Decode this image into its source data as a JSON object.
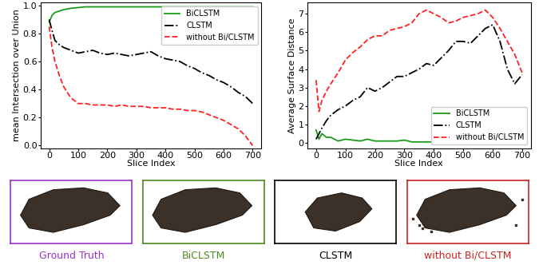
{
  "chart_data": [
    {
      "type": "line",
      "x_label": "Slice Index",
      "y_label": "mean Intersection over Union",
      "x": [
        0,
        10,
        20,
        35,
        50,
        75,
        100,
        125,
        150,
        175,
        200,
        225,
        250,
        275,
        300,
        325,
        350,
        375,
        400,
        425,
        450,
        475,
        500,
        525,
        550,
        575,
        600,
        625,
        650,
        675,
        700
      ],
      "xlim": [
        -30,
        730
      ],
      "xticks": [
        0,
        100,
        200,
        300,
        400,
        500,
        600,
        700
      ],
      "ylim": [
        -0.02,
        1.02
      ],
      "yticks": [
        0.0,
        0.2,
        0.4,
        0.6,
        0.8,
        1.0
      ],
      "legend": "upper right",
      "series": [
        {
          "name": "BiCLSTM",
          "color": "#1a9a1a",
          "line_style": "solid",
          "values": [
            0.88,
            0.93,
            0.95,
            0.96,
            0.97,
            0.98,
            0.985,
            0.99,
            0.99,
            0.99,
            0.99,
            0.99,
            0.99,
            0.99,
            0.99,
            0.99,
            0.99,
            0.99,
            0.99,
            0.99,
            0.99,
            0.99,
            0.99,
            0.99,
            0.99,
            0.99,
            0.99,
            0.99,
            0.99,
            0.99,
            0.99
          ]
        },
        {
          "name": "CLSTM",
          "color": "#000000",
          "line_style": "dashdot",
          "values": [
            0.9,
            0.82,
            0.75,
            0.72,
            0.7,
            0.68,
            0.66,
            0.67,
            0.68,
            0.66,
            0.65,
            0.66,
            0.65,
            0.64,
            0.65,
            0.66,
            0.67,
            0.64,
            0.62,
            0.61,
            0.6,
            0.57,
            0.55,
            0.52,
            0.5,
            0.47,
            0.45,
            0.42,
            0.38,
            0.35,
            0.3
          ]
        },
        {
          "name": "without Bi/CLSTM",
          "color": "#ff2020",
          "line_style": "dashed",
          "values": [
            0.85,
            0.7,
            0.6,
            0.5,
            0.42,
            0.34,
            0.3,
            0.3,
            0.29,
            0.29,
            0.29,
            0.28,
            0.29,
            0.28,
            0.28,
            0.28,
            0.27,
            0.27,
            0.27,
            0.26,
            0.26,
            0.25,
            0.25,
            0.24,
            0.22,
            0.2,
            0.18,
            0.15,
            0.12,
            0.07,
            0.0
          ]
        }
      ]
    },
    {
      "type": "line",
      "x_label": "Slice Index",
      "y_label": "Average Surface Distance",
      "x": [
        0,
        10,
        20,
        35,
        50,
        75,
        100,
        125,
        150,
        175,
        200,
        225,
        250,
        275,
        300,
        325,
        350,
        375,
        400,
        425,
        450,
        475,
        500,
        525,
        550,
        575,
        600,
        625,
        650,
        675,
        700
      ],
      "xlim": [
        -30,
        730
      ],
      "xticks": [
        0,
        100,
        200,
        300,
        400,
        500,
        600,
        700
      ],
      "ylim": [
        -0.3,
        7.6
      ],
      "yticks": [
        0,
        1,
        2,
        3,
        4,
        5,
        6,
        7
      ],
      "legend": "lower right",
      "series": [
        {
          "name": "BiCLSTM",
          "color": "#1a9a1a",
          "line_style": "solid",
          "values": [
            0.7,
            0.2,
            0.5,
            0.3,
            0.3,
            0.1,
            0.2,
            0.15,
            0.1,
            0.2,
            0.1,
            0.1,
            0.1,
            0.1,
            0.15,
            0.05,
            0.05,
            0.05,
            0.05,
            0.05,
            0.05,
            0.05,
            0.05,
            0.05,
            0.05,
            0.1,
            0.05,
            0.05,
            0.05,
            0.05,
            0.05
          ]
        },
        {
          "name": "CLSTM",
          "color": "#000000",
          "line_style": "dashdot",
          "values": [
            0.2,
            0.5,
            0.8,
            1.2,
            1.5,
            1.8,
            2.0,
            2.3,
            2.5,
            3.0,
            2.8,
            3.0,
            3.3,
            3.6,
            3.6,
            3.8,
            4.0,
            4.3,
            4.2,
            4.6,
            5.0,
            5.5,
            5.5,
            5.4,
            5.8,
            6.2,
            6.4,
            5.5,
            4.0,
            3.2,
            3.7
          ]
        },
        {
          "name": "without Bi/CLSTM",
          "color": "#ff2020",
          "line_style": "dashed",
          "values": [
            3.4,
            1.7,
            2.3,
            2.8,
            3.2,
            3.8,
            4.5,
            4.9,
            5.2,
            5.6,
            5.8,
            5.8,
            6.1,
            6.2,
            6.3,
            6.5,
            7.0,
            7.2,
            7.0,
            6.8,
            6.5,
            6.6,
            6.8,
            6.9,
            7.0,
            7.2,
            6.8,
            6.2,
            5.5,
            4.8,
            3.8
          ]
        }
      ]
    }
  ],
  "panels": [
    {
      "caption": "Ground Truth",
      "color": "#9933cc"
    },
    {
      "caption": "BiCLSTM",
      "color": "#4e8a1e"
    },
    {
      "caption": "CLSTM",
      "color": "#000000"
    },
    {
      "caption": "without Bi/CLSTM",
      "color": "#cc2222"
    }
  ]
}
